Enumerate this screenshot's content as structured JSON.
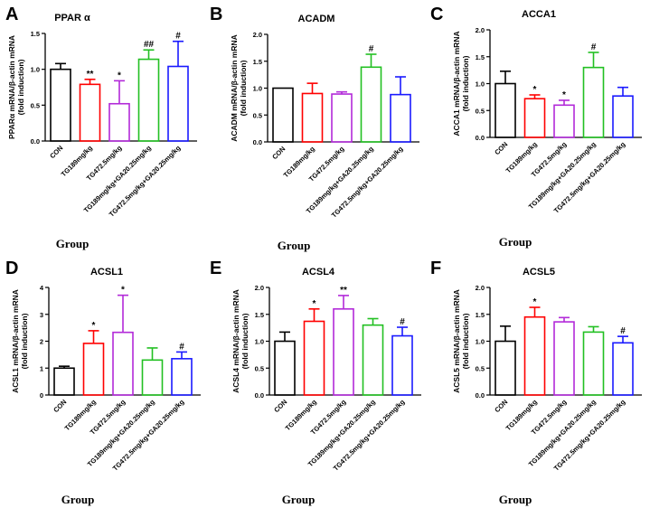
{
  "chart_data": [
    {
      "panel": "A",
      "type": "bar",
      "title": "PPAR α",
      "ylabel": [
        "PPARα mRNA/β-actin mRNA",
        "(fold induction)"
      ],
      "xlabel": "Group",
      "ylim": [
        0,
        1.5
      ],
      "yticks": [
        "0.0",
        "0.5",
        "1.0",
        "1.5"
      ],
      "categories": [
        "CON",
        "TG189mg/kg",
        "TG472.5mg/kg",
        "TG189mg/kg+GA20.25mg/kg",
        "TG472.5mg/kg+GA20.25mg/kg"
      ],
      "values": [
        1.0,
        0.79,
        0.52,
        1.14,
        1.04
      ],
      "errors": [
        0.08,
        0.07,
        0.32,
        0.13,
        0.35
      ],
      "significance": [
        "",
        "**",
        "*",
        "##",
        "#"
      ],
      "colors": [
        "#000000",
        "#ff0000",
        "#b22ad9",
        "#22c022",
        "#1a1aff"
      ]
    },
    {
      "panel": "B",
      "type": "bar",
      "title": "ACADM",
      "ylabel": [
        "ACADM mRNA/β-actin mRNA",
        "(fold induction)"
      ],
      "xlabel": "Group",
      "ylim": [
        0,
        2.0
      ],
      "yticks": [
        "0.0",
        "0.5",
        "1.0",
        "1.5",
        "2.0"
      ],
      "categories": [
        "CON",
        "TG189mg/kg",
        "TG472.5mg/kg",
        "TG189mg/kg+GA20.25mg/kg",
        "TG472.5mg/kg+GA20.25mg/kg"
      ],
      "values": [
        1.0,
        0.9,
        0.89,
        1.39,
        0.88
      ],
      "errors": [
        0.0,
        0.19,
        0.04,
        0.24,
        0.33
      ],
      "significance": [
        "",
        "",
        "",
        "#",
        ""
      ],
      "colors": [
        "#000000",
        "#ff0000",
        "#b22ad9",
        "#22c022",
        "#1a1aff"
      ]
    },
    {
      "panel": "C",
      "type": "bar",
      "title": "ACCA1",
      "ylabel": [
        "ACCA1 mRNA/β-actin mRNA",
        "(fold induction)"
      ],
      "xlabel": "Group",
      "ylim": [
        0,
        2.0
      ],
      "yticks": [
        "0.0",
        "0.5",
        "1.0",
        "1.5",
        "2.0"
      ],
      "categories": [
        "CON",
        "TG189mg/kg",
        "TG472.5mg/kg",
        "TG189mg/kg+GA20.25mg/kg",
        "TG472.5mg/kg+GA20.25mg/kg"
      ],
      "values": [
        1.0,
        0.72,
        0.6,
        1.3,
        0.77
      ],
      "errors": [
        0.23,
        0.07,
        0.09,
        0.28,
        0.16
      ],
      "significance": [
        "",
        "*",
        "*",
        "#",
        ""
      ],
      "colors": [
        "#000000",
        "#ff0000",
        "#b22ad9",
        "#22c022",
        "#1a1aff"
      ]
    },
    {
      "panel": "D",
      "type": "bar",
      "title": "ACSL1",
      "ylabel": [
        "ACSL1 mRNA/β-actin mRNA",
        "(fold induction)"
      ],
      "xlabel": "Group",
      "ylim": [
        0,
        4
      ],
      "yticks": [
        "0",
        "1",
        "2",
        "3",
        "4"
      ],
      "categories": [
        "CON",
        "TG189mg/kg",
        "TG472.5mg/kg",
        "TG189mg/kg+GA20.25mg/kg",
        "TG472.5mg/kg+GA20.25mg/kg"
      ],
      "values": [
        1.0,
        1.92,
        2.33,
        1.3,
        1.35
      ],
      "errors": [
        0.07,
        0.47,
        1.38,
        0.45,
        0.25
      ],
      "significance": [
        "",
        "*",
        "*",
        "",
        "#"
      ],
      "colors": [
        "#000000",
        "#ff0000",
        "#b22ad9",
        "#22c022",
        "#1a1aff"
      ]
    },
    {
      "panel": "E",
      "type": "bar",
      "title": "ACSL4",
      "ylabel": [
        "ACSL4 mRNA/β-actin mRNA",
        "(fold induction)"
      ],
      "xlabel": "Group",
      "ylim": [
        0,
        2.0
      ],
      "yticks": [
        "0.0",
        "0.5",
        "1.0",
        "1.5",
        "2.0"
      ],
      "categories": [
        "CON",
        "TG189mg/kg",
        "TG472.5mg/kg",
        "TG189mg/kg+GA20.25mg/kg",
        "TG472.5mg/kg+GA20.25mg/kg"
      ],
      "values": [
        1.0,
        1.37,
        1.6,
        1.3,
        1.1
      ],
      "errors": [
        0.17,
        0.23,
        0.25,
        0.12,
        0.16
      ],
      "significance": [
        "",
        "*",
        "**",
        "",
        "#"
      ],
      "colors": [
        "#000000",
        "#ff0000",
        "#b22ad9",
        "#22c022",
        "#1a1aff"
      ]
    },
    {
      "panel": "F",
      "type": "bar",
      "title": "ACSL5",
      "ylabel": [
        "ACSL5 mRNA/β-actin mRNA",
        "(fold induction)"
      ],
      "xlabel": "Group",
      "ylim": [
        0,
        2.0
      ],
      "yticks": [
        "0.0",
        "0.5",
        "1.0",
        "1.5",
        "2.0"
      ],
      "categories": [
        "CON",
        "TG189mg/kg",
        "TG472.5mg/kg",
        "TG189mg/kg+GA20.25mg/kg",
        "TG472.5mg/kg+GA20.25mg/kg"
      ],
      "values": [
        1.0,
        1.45,
        1.36,
        1.17,
        0.97
      ],
      "errors": [
        0.28,
        0.18,
        0.08,
        0.1,
        0.12
      ],
      "significance": [
        "",
        "*",
        "",
        "",
        "#"
      ],
      "colors": [
        "#000000",
        "#ff0000",
        "#b22ad9",
        "#22c022",
        "#1a1aff"
      ]
    }
  ]
}
